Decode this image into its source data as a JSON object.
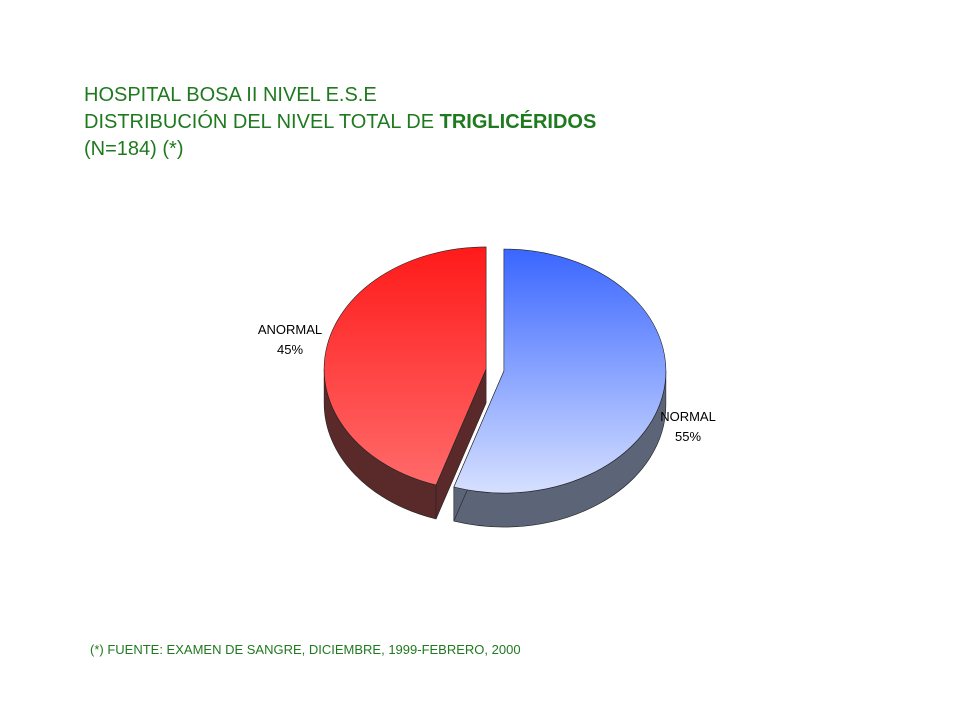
{
  "header": {
    "line1": "HOSPITAL BOSA II NIVEL E.S.E",
    "line2_prefix": "DISTRIBUCIÓN DEL NIVEL TOTAL DE ",
    "line2_bold": "TRIGLICÉRIDOS",
    "line3": "(N=184) (*)"
  },
  "footnote": "(*) FUENTE: EXAMEN DE SANGRE, DICIEMBRE, 1999-FEBRERO,  2000",
  "colors": {
    "title": "#1f7a1f",
    "normal_light": "#d6e0ff",
    "normal_dark": "#3a66ff",
    "normal_side": "#5c6478",
    "anormal_light": "#ff6a6a",
    "anormal_dark": "#ff1a1a",
    "anormal_side": "#5a2a2a"
  },
  "chart_data": {
    "type": "pie",
    "style": "3d-exploded",
    "slices": [
      {
        "name": "NORMAL",
        "value": 55,
        "label": "55%"
      },
      {
        "name": "ANORMAL",
        "value": 45,
        "label": "45%"
      }
    ]
  }
}
